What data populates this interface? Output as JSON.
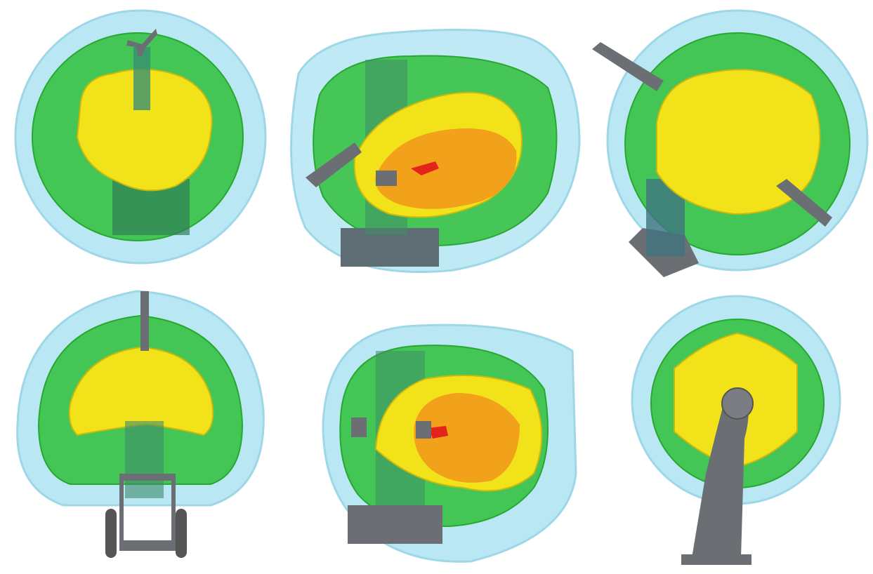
{
  "figure": {
    "description_free": true,
    "colors": {
      "outer_shell": "#7fd3ea",
      "middle_shell": "#2fbf3a",
      "inner_core": "#f2e21a",
      "core_orange": "#f2a11a",
      "core_red": "#e3241b",
      "robot_gray": "#6b6e72"
    },
    "panels": [
      {
        "view": "top-view-1"
      },
      {
        "view": "oblique-view-1"
      },
      {
        "view": "top-view-2"
      },
      {
        "view": "front-view-1"
      },
      {
        "view": "side-view-1"
      },
      {
        "view": "front-view-2"
      }
    ]
  }
}
